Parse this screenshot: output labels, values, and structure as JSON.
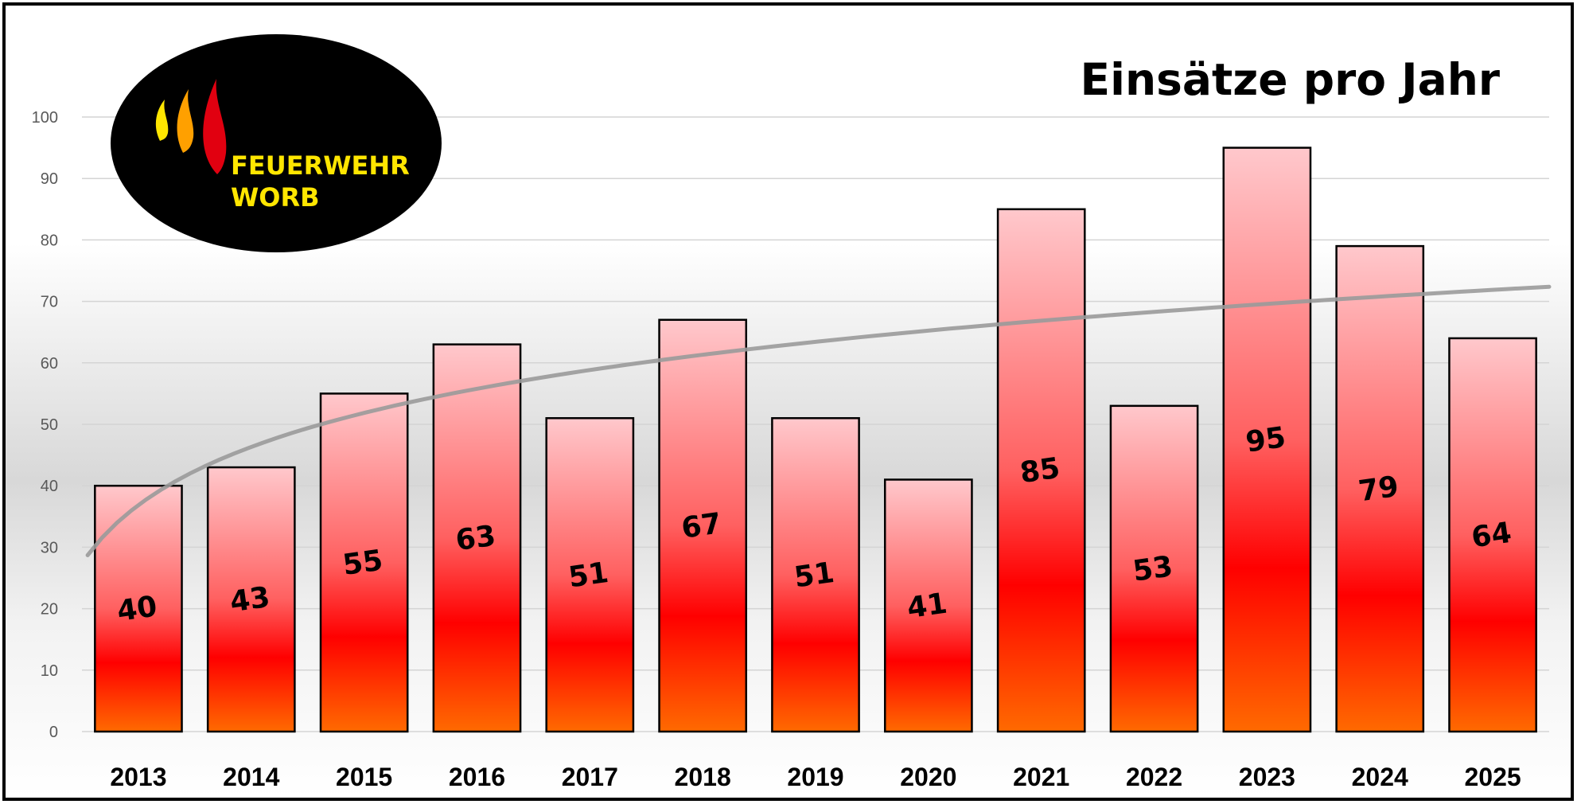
{
  "chart_data": {
    "type": "bar",
    "title": "Einsätze pro Jahr",
    "categories": [
      "2013",
      "2014",
      "2015",
      "2016",
      "2017",
      "2018",
      "2019",
      "2020",
      "2021",
      "2022",
      "2023",
      "2024",
      "2025"
    ],
    "values": [
      40,
      43,
      55,
      63,
      51,
      67,
      51,
      41,
      85,
      53,
      95,
      79,
      64
    ],
    "data_labels": [
      "40",
      "43",
      "55",
      "63",
      "51",
      "67",
      "51",
      "41",
      "85",
      "53",
      "95",
      "79",
      "64"
    ],
    "ylim": [
      0,
      100
    ],
    "yticks": [
      "0",
      "10",
      "20",
      "30",
      "40",
      "50",
      "60",
      "70",
      "80",
      "90",
      "100"
    ],
    "trendline": {
      "type": "logarithmic",
      "color": "#9a9a9a"
    },
    "grid": true,
    "legend": "none",
    "colors": {
      "bar_top": "#ffc8cc",
      "bar_mid": "#ff0000",
      "bar_bottom": "#ff6a00",
      "outline": "#000000"
    }
  },
  "logo": {
    "line1": "FEUERWEHR",
    "line2": "WORB",
    "text_color": "#ffe600"
  }
}
